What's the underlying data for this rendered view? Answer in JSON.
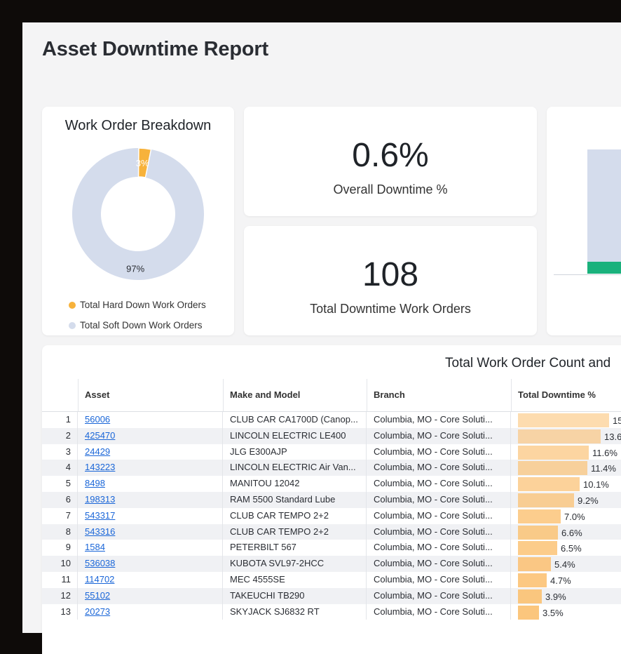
{
  "page": {
    "title": "Asset Downtime Report"
  },
  "donut": {
    "title": "Work Order Breakdown",
    "slices": [
      {
        "label": "Total Hard Down Work Orders",
        "pct_text": "3%",
        "value": 3,
        "color": "#f7b23b"
      },
      {
        "label": "Total Soft Down Work Orders",
        "pct_text": "97%",
        "value": 97,
        "color": "#d4dcec"
      }
    ]
  },
  "kpis": [
    {
      "value": "0.6%",
      "label": "Overall Downtime %"
    },
    {
      "value": "108",
      "label": "Total Downtime Work Orders"
    }
  ],
  "colors": {
    "bar_soft": "#d4dcec",
    "bar_hard": "#1ab17c",
    "downtime_bar": "#fbbf6e",
    "link": "#1a66d8"
  },
  "table": {
    "title": "Total Work Order Count and",
    "headers": [
      "Asset",
      "Make and Model",
      "Branch",
      "Total Downtime %"
    ],
    "rows": [
      {
        "num": "1",
        "asset": "56006",
        "make": "CLUB CAR CA1700D (Canop...",
        "branch": "Columbia, MO - Core Soluti...",
        "downtime": "15",
        "value": 15.0
      },
      {
        "num": "2",
        "asset": "425470",
        "make": "LINCOLN ELECTRIC LE400",
        "branch": "Columbia, MO - Core Soluti...",
        "downtime": "13.6",
        "value": 13.6
      },
      {
        "num": "3",
        "asset": "24429",
        "make": "JLG E300AJP",
        "branch": "Columbia, MO - Core Soluti...",
        "downtime": "11.6%",
        "value": 11.6
      },
      {
        "num": "4",
        "asset": "143223",
        "make": "LINCOLN ELECTRIC Air Van...",
        "branch": "Columbia, MO - Core Soluti...",
        "downtime": "11.4%",
        "value": 11.4
      },
      {
        "num": "5",
        "asset": "8498",
        "make": "MANITOU 12042",
        "branch": "Columbia, MO - Core Soluti...",
        "downtime": "10.1%",
        "value": 10.1
      },
      {
        "num": "6",
        "asset": "198313",
        "make": "RAM 5500 Standard Lube",
        "branch": "Columbia, MO - Core Soluti...",
        "downtime": "9.2%",
        "value": 9.2
      },
      {
        "num": "7",
        "asset": "543317",
        "make": "CLUB CAR TEMPO 2+2",
        "branch": "Columbia, MO - Core Soluti...",
        "downtime": "7.0%",
        "value": 7.0
      },
      {
        "num": "8",
        "asset": "543316",
        "make": "CLUB CAR TEMPO 2+2",
        "branch": "Columbia, MO - Core Soluti...",
        "downtime": "6.6%",
        "value": 6.6
      },
      {
        "num": "9",
        "asset": "1584",
        "make": "PETERBILT 567",
        "branch": "Columbia, MO - Core Soluti...",
        "downtime": "6.5%",
        "value": 6.5
      },
      {
        "num": "10",
        "asset": "536038",
        "make": "KUBOTA SVL97-2HCC",
        "branch": "Columbia, MO - Core Soluti...",
        "downtime": "5.4%",
        "value": 5.4
      },
      {
        "num": "11",
        "asset": "114702",
        "make": "MEC 4555SE",
        "branch": "Columbia, MO - Core Soluti...",
        "downtime": "4.7%",
        "value": 4.7
      },
      {
        "num": "12",
        "asset": "55102",
        "make": "TAKEUCHI TB290",
        "branch": "Columbia, MO - Core Soluti...",
        "downtime": "3.9%",
        "value": 3.9
      },
      {
        "num": "13",
        "asset": "20273",
        "make": "SKYJACK SJ6832 RT",
        "branch": "Columbia, MO - Core Soluti...",
        "downtime": "3.5%",
        "value": 3.5
      }
    ]
  }
}
